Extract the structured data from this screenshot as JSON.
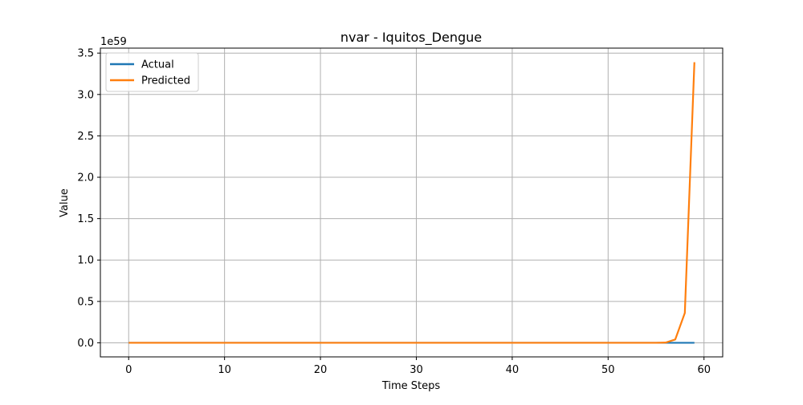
{
  "chart_data": {
    "type": "line",
    "title": "nvar - Iquitos_Dengue",
    "xlabel": "Time Steps",
    "ylabel": "Value",
    "y_offset_text": "1e59",
    "y_scale_factor": 1e+59,
    "xlim": [
      -2.95,
      61.95
    ],
    "ylim": [
      -0.17,
      3.56
    ],
    "xticks": [
      0,
      10,
      20,
      30,
      40,
      50,
      60
    ],
    "xtick_labels": [
      "0",
      "10",
      "20",
      "30",
      "40",
      "50",
      "60"
    ],
    "yticks": [
      0.0,
      0.5,
      1.0,
      1.5,
      2.0,
      2.5,
      3.0,
      3.5
    ],
    "ytick_labels": [
      "0.0",
      "0.5",
      "1.0",
      "1.5",
      "2.0",
      "2.5",
      "3.0",
      "3.5"
    ],
    "grid": true,
    "legend_position": "upper-left",
    "series": [
      {
        "name": "Actual",
        "color": "#1f77b4",
        "x": [
          0,
          1,
          2,
          3,
          4,
          5,
          6,
          7,
          8,
          9,
          10,
          11,
          12,
          13,
          14,
          15,
          16,
          17,
          18,
          19,
          20,
          21,
          22,
          23,
          24,
          25,
          26,
          27,
          28,
          29,
          30,
          31,
          32,
          33,
          34,
          35,
          36,
          37,
          38,
          39,
          40,
          41,
          42,
          43,
          44,
          45,
          46,
          47,
          48,
          49,
          50,
          51,
          52,
          53,
          54,
          55,
          56,
          57,
          58,
          59
        ],
        "values": [
          0,
          0,
          0,
          0,
          0,
          0,
          0,
          0,
          0,
          0,
          0,
          0,
          0,
          0,
          0,
          0,
          0,
          0,
          0,
          0,
          0,
          0,
          0,
          0,
          0,
          0,
          0,
          0,
          0,
          0,
          0,
          0,
          0,
          0,
          0,
          0,
          0,
          0,
          0,
          0,
          0,
          0,
          0,
          0,
          0,
          0,
          0,
          0,
          0,
          0,
          0,
          0,
          0,
          0,
          0,
          0,
          0,
          0,
          0,
          0
        ]
      },
      {
        "name": "Predicted",
        "color": "#ff7f0e",
        "x": [
          0,
          1,
          2,
          3,
          4,
          5,
          6,
          7,
          8,
          9,
          10,
          11,
          12,
          13,
          14,
          15,
          16,
          17,
          18,
          19,
          20,
          21,
          22,
          23,
          24,
          25,
          26,
          27,
          28,
          29,
          30,
          31,
          32,
          33,
          34,
          35,
          36,
          37,
          38,
          39,
          40,
          41,
          42,
          43,
          44,
          45,
          46,
          47,
          48,
          49,
          50,
          51,
          52,
          53,
          54,
          55,
          56,
          57,
          58,
          59
        ],
        "values": [
          0,
          0,
          0,
          0,
          0,
          0,
          0,
          0,
          0,
          0,
          0,
          0,
          0,
          0,
          0,
          0,
          0,
          0,
          0,
          0,
          0,
          0,
          0,
          0,
          0,
          0,
          0,
          0,
          0,
          0,
          0,
          0,
          0,
          0,
          0,
          0,
          0,
          0,
          0,
          0,
          0,
          0,
          0,
          0,
          0,
          0,
          0,
          0,
          0,
          0,
          0,
          0,
          0,
          0,
          0,
          0,
          0.003,
          0.04,
          0.36,
          3.39
        ]
      }
    ]
  }
}
